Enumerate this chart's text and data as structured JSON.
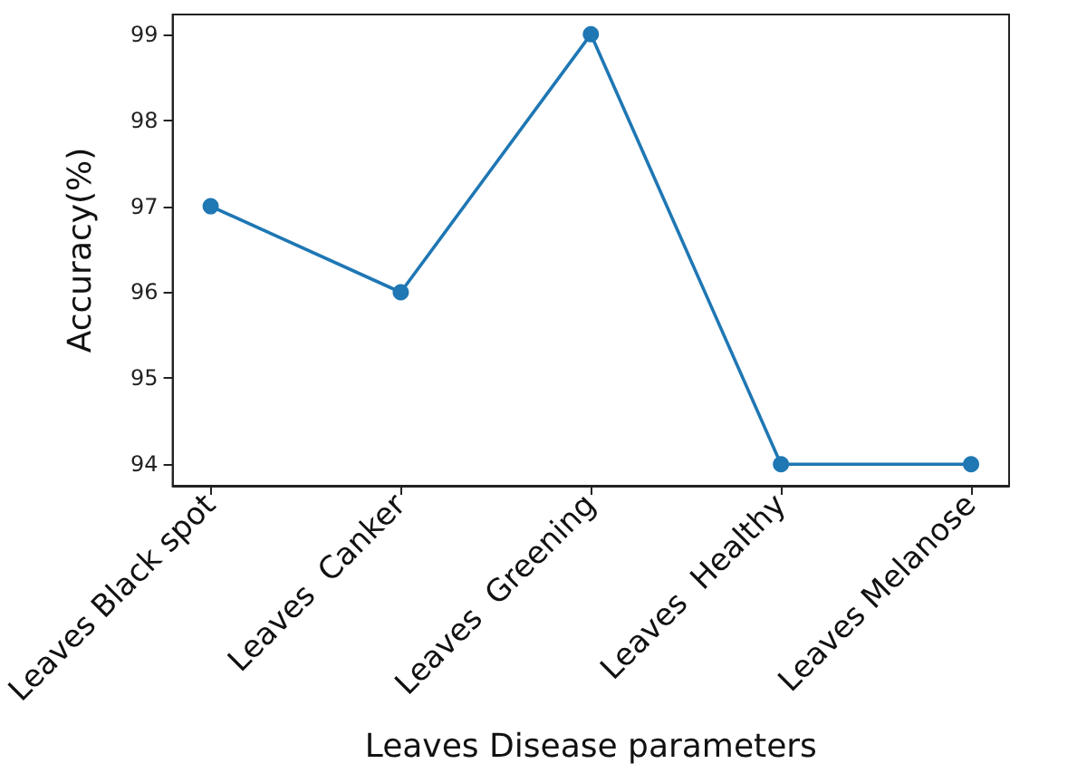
{
  "chart_data": {
    "type": "line",
    "xlabel": "Leaves Disease parameters",
    "ylabel": "Accuracy(%)",
    "categories": [
      "Leaves Black spot",
      "Leaves  Canker",
      "Leaves  Greening",
      "Leaves  Healthy",
      "Leaves Melanose"
    ],
    "series": [
      {
        "color": "#1f77b4",
        "values": [
          97,
          96,
          99,
          94,
          94
        ]
      }
    ],
    "ylim": [
      93.75,
      99.23
    ],
    "yticks": [
      94,
      95,
      96,
      97,
      98,
      99
    ],
    "grid": false,
    "marker": "circle",
    "line_style": "solid"
  }
}
